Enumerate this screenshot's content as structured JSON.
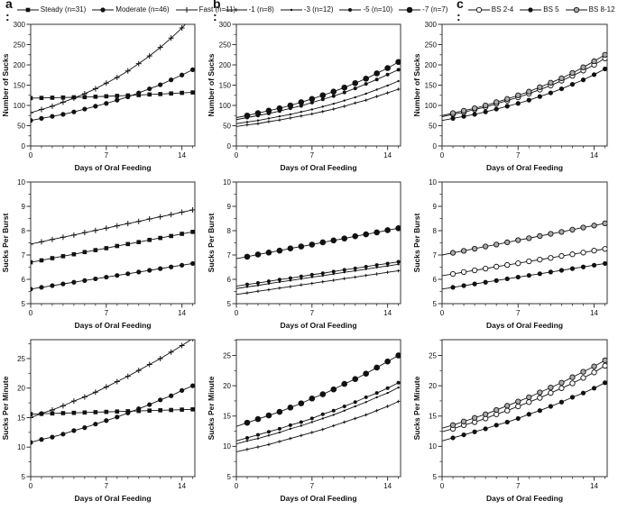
{
  "colors": {
    "line": "#111111",
    "frame": "#333333",
    "text": "#111111",
    "gray_fill": "#aaaaaa",
    "background": "#ffffff"
  },
  "legends": [
    {
      "label": "a :",
      "items": [
        {
          "marker": "filled-square",
          "text": "Steady (n=31)"
        },
        {
          "marker": "filled-circle",
          "text": "Moderate (n=46)"
        },
        {
          "marker": "plus",
          "text": "Fast (n=11)"
        }
      ]
    },
    {
      "label": "b :",
      "items": [
        {
          "marker": "plus-small",
          "text": "-1 (n=8)"
        },
        {
          "marker": "dot-small",
          "text": "-3 (n=12)"
        },
        {
          "marker": "dot-medium",
          "text": "-5 (n=10)"
        },
        {
          "marker": "dot-large",
          "text": "-7 (n=7)"
        }
      ]
    },
    {
      "label": "c :",
      "items": [
        {
          "marker": "open-circle",
          "text": "BS 2-4"
        },
        {
          "marker": "filled-circle",
          "text": "BS 5"
        },
        {
          "marker": "gray-circle",
          "text": "BS 8-12"
        }
      ]
    }
  ],
  "x_days": [
    0,
    1,
    2,
    3,
    4,
    5,
    6,
    7,
    8,
    9,
    10,
    11,
    12,
    13,
    14,
    15
  ],
  "chart_data": [
    {
      "id": "a1",
      "type": "line",
      "column": "a",
      "row": 1,
      "xlabel": "Days of Oral Feeding",
      "ylabel": "Number of Sucks",
      "xlim": [
        0,
        15.2
      ],
      "ylim": [
        0,
        300
      ],
      "xticks": [
        0,
        7,
        14
      ],
      "yticks": [
        0,
        50,
        100,
        150,
        200,
        250,
        300
      ],
      "markers_start_day": 0,
      "series": [
        {
          "name": "Steady (n=31)",
          "marker": "filled-square",
          "values": [
            118,
            118.5,
            119,
            119.5,
            120,
            120.5,
            121.5,
            122.5,
            123.5,
            124.5,
            125.5,
            127,
            128,
            129.5,
            131,
            132
          ]
        },
        {
          "name": "Moderate (n=46)",
          "marker": "filled-circle",
          "values": [
            63,
            68,
            73,
            78,
            84,
            91,
            98,
            105,
            113,
            121,
            131,
            141,
            151,
            163,
            175,
            188
          ]
        },
        {
          "name": "Fast (n=11)",
          "marker": "plus",
          "values": [
            82,
            90,
            98,
            108,
            118,
            129,
            141,
            155,
            169,
            185,
            203,
            222,
            243,
            266,
            291,
            319
          ]
        }
      ]
    },
    {
      "id": "b1",
      "type": "line",
      "column": "b",
      "row": 1,
      "xlabel": "Days of Oral Feeding",
      "ylabel": "Number of Sucks",
      "xlim": [
        0,
        15.2
      ],
      "ylim": [
        0,
        300
      ],
      "xticks": [
        0,
        7,
        14
      ],
      "yticks": [
        0,
        50,
        100,
        150,
        200,
        250,
        300
      ],
      "markers_start_day": 1,
      "series": [
        {
          "name": "-1 (n=8)",
          "marker": "plus-small",
          "values": [
            48,
            52,
            55,
            60,
            64,
            69,
            74,
            79,
            85,
            91,
            98,
            106,
            113,
            122,
            131,
            140
          ]
        },
        {
          "name": "-3 (n=12)",
          "marker": "dot-small",
          "values": [
            55,
            59,
            63,
            68,
            73,
            78,
            84,
            90,
            97,
            104,
            112,
            120,
            129,
            139,
            149,
            160
          ]
        },
        {
          "name": "-5 (n=10)",
          "marker": "dot-medium",
          "values": [
            65,
            70,
            75,
            80,
            86,
            93,
            99,
            107,
            115,
            123,
            132,
            142,
            153,
            164,
            176,
            188
          ]
        },
        {
          "name": "-7 (n=7)",
          "marker": "dot-large",
          "values": [
            70,
            75,
            81,
            87,
            93,
            100,
            108,
            116,
            125,
            134,
            144,
            155,
            166,
            179,
            192,
            207
          ]
        }
      ]
    },
    {
      "id": "c1",
      "type": "line",
      "column": "c",
      "row": 1,
      "xlabel": "Days of Oral Feeding",
      "ylabel": "Number of Sucks",
      "xlim": [
        0,
        15.2
      ],
      "ylim": [
        0,
        300
      ],
      "xticks": [
        0,
        7,
        14
      ],
      "yticks": [
        0,
        50,
        100,
        150,
        200,
        250,
        300
      ],
      "markers_start_day": 1,
      "series": [
        {
          "name": "BS 2-4",
          "marker": "open-circle",
          "values": [
            72,
            78,
            83,
            90,
            96,
            104,
            112,
            120,
            129,
            139,
            149,
            161,
            173,
            186,
            200,
            216
          ]
        },
        {
          "name": "BS 5",
          "marker": "filled-circle",
          "values": [
            63,
            68,
            73,
            78,
            84,
            91,
            98,
            105,
            113,
            122,
            131,
            141,
            152,
            163,
            176,
            190
          ]
        },
        {
          "name": "BS 8-12",
          "marker": "gray-circle",
          "values": [
            75,
            81,
            87,
            93,
            100,
            108,
            116,
            125,
            134,
            145,
            156,
            167,
            180,
            194,
            209,
            225
          ]
        }
      ]
    },
    {
      "id": "a2",
      "type": "line",
      "column": "a",
      "row": 2,
      "xlabel": "Days of Oral Feeding",
      "ylabel": "Sucks Per Burst",
      "xlim": [
        0,
        15.2
      ],
      "ylim": [
        5,
        10
      ],
      "xticks": [
        0,
        7,
        14
      ],
      "yticks": [
        5,
        6,
        7,
        8,
        9,
        10
      ],
      "markers_start_day": 0,
      "series": [
        {
          "name": "Steady (n=31)",
          "marker": "filled-square",
          "values": [
            6.7,
            6.78,
            6.87,
            6.95,
            7.03,
            7.12,
            7.2,
            7.28,
            7.37,
            7.45,
            7.53,
            7.62,
            7.7,
            7.78,
            7.87,
            7.95
          ]
        },
        {
          "name": "Moderate (n=46)",
          "marker": "filled-circle",
          "values": [
            5.6,
            5.67,
            5.74,
            5.81,
            5.88,
            5.95,
            6.02,
            6.09,
            6.16,
            6.23,
            6.3,
            6.37,
            6.44,
            6.51,
            6.58,
            6.65
          ]
        },
        {
          "name": "Fast (n=11)",
          "marker": "plus",
          "values": [
            7.45,
            7.54,
            7.64,
            7.73,
            7.82,
            7.92,
            8.01,
            8.1,
            8.2,
            8.29,
            8.38,
            8.48,
            8.57,
            8.66,
            8.76,
            8.85
          ]
        }
      ]
    },
    {
      "id": "b2",
      "type": "line",
      "column": "b",
      "row": 2,
      "xlabel": "Days of Oral Feeding",
      "ylabel": "Sucks Per Burst",
      "xlim": [
        0,
        15.2
      ],
      "ylim": [
        5,
        10
      ],
      "xticks": [
        0,
        7,
        14
      ],
      "yticks": [
        5,
        6,
        7,
        8,
        9,
        10
      ],
      "markers_start_day": 1,
      "series": [
        {
          "name": "-1 (n=8)",
          "marker": "plus-small",
          "values": [
            5.38,
            5.44,
            5.51,
            5.57,
            5.64,
            5.7,
            5.77,
            5.83,
            5.9,
            5.96,
            6.03,
            6.09,
            6.16,
            6.22,
            6.29,
            6.35
          ]
        },
        {
          "name": "-3 (n=12)",
          "marker": "dot-small",
          "values": [
            5.62,
            5.69,
            5.75,
            5.82,
            5.89,
            5.95,
            6.02,
            6.09,
            6.15,
            6.22,
            6.29,
            6.35,
            6.42,
            6.49,
            6.55,
            6.62
          ]
        },
        {
          "name": "-5 (n=10)",
          "marker": "dot-medium",
          "values": [
            5.72,
            5.79,
            5.85,
            5.92,
            5.99,
            6.05,
            6.12,
            6.19,
            6.25,
            6.32,
            6.39,
            6.45,
            6.52,
            6.59,
            6.65,
            6.72
          ]
        },
        {
          "name": "-7 (n=7)",
          "marker": "dot-large",
          "values": [
            6.85,
            6.93,
            7.02,
            7.1,
            7.18,
            7.27,
            7.35,
            7.43,
            7.52,
            7.6,
            7.68,
            7.77,
            7.85,
            7.93,
            8.02,
            8.1
          ]
        }
      ]
    },
    {
      "id": "c2",
      "type": "line",
      "column": "c",
      "row": 2,
      "xlabel": "Days of Oral Feeding",
      "ylabel": "Sucks Per Burst",
      "xlim": [
        0,
        15.2
      ],
      "ylim": [
        5,
        10
      ],
      "xticks": [
        0,
        7,
        14
      ],
      "yticks": [
        5,
        6,
        7,
        8,
        9,
        10
      ],
      "markers_start_day": 1,
      "series": [
        {
          "name": "BS 2-4",
          "marker": "open-circle",
          "values": [
            6.15,
            6.22,
            6.3,
            6.37,
            6.44,
            6.52,
            6.59,
            6.66,
            6.74,
            6.81,
            6.88,
            6.96,
            7.03,
            7.1,
            7.18,
            7.25
          ]
        },
        {
          "name": "BS 5",
          "marker": "filled-circle",
          "values": [
            5.6,
            5.67,
            5.74,
            5.81,
            5.88,
            5.95,
            6.02,
            6.09,
            6.16,
            6.23,
            6.3,
            6.37,
            6.44,
            6.51,
            6.58,
            6.65
          ]
        },
        {
          "name": "BS 8-12",
          "marker": "gray-circle",
          "values": [
            7.0,
            7.09,
            7.17,
            7.26,
            7.35,
            7.43,
            7.52,
            7.61,
            7.69,
            7.78,
            7.87,
            7.95,
            8.04,
            8.13,
            8.21,
            8.3
          ]
        }
      ]
    },
    {
      "id": "a3",
      "type": "line",
      "column": "a",
      "row": 3,
      "xlabel": "Days of Oral Feeding",
      "ylabel": "Sucks Per Minute",
      "xlim": [
        0,
        15.2
      ],
      "ylim": [
        5,
        28.2
      ],
      "xticks": [
        0,
        7,
        14
      ],
      "yticks": [
        5,
        10,
        15,
        20,
        25
      ],
      "markers_start_day": 0,
      "series": [
        {
          "name": "Steady (n=31)",
          "marker": "filled-square",
          "values": [
            15.6,
            15.65,
            15.71,
            15.76,
            15.81,
            15.87,
            15.92,
            15.97,
            16.03,
            16.08,
            16.13,
            16.19,
            16.24,
            16.29,
            16.35,
            16.4
          ]
        },
        {
          "name": "Moderate (n=46)",
          "marker": "filled-circle",
          "values": [
            10.8,
            11.3,
            11.7,
            12.2,
            12.8,
            13.3,
            13.9,
            14.5,
            15.1,
            15.8,
            16.5,
            17.2,
            18.0,
            18.7,
            19.6,
            20.4
          ]
        },
        {
          "name": "Fast (n=11)",
          "marker": "plus",
          "values": [
            15.0,
            15.7,
            16.3,
            17.0,
            17.8,
            18.5,
            19.3,
            20.2,
            21.1,
            22.0,
            23.0,
            24.0,
            25.0,
            26.1,
            27.2,
            28.4
          ]
        }
      ]
    },
    {
      "id": "b3",
      "type": "line",
      "column": "b",
      "row": 3,
      "xlabel": "Days of Oral Feeding",
      "ylabel": "Sucks Per Minute",
      "xlim": [
        0,
        15.2
      ],
      "ylim": [
        5,
        27.6
      ],
      "xticks": [
        0,
        7,
        14
      ],
      "yticks": [
        5,
        10,
        15,
        20,
        25
      ],
      "markers_start_day": 1,
      "series": [
        {
          "name": "-1 (n=8)",
          "marker": "plus-small",
          "values": [
            9.1,
            9.5,
            9.9,
            10.3,
            10.8,
            11.3,
            11.8,
            12.3,
            12.8,
            13.4,
            14.0,
            14.6,
            15.2,
            15.9,
            16.6,
            17.4
          ]
        },
        {
          "name": "-3 (n=12)",
          "marker": "dot-small",
          "values": [
            10.4,
            10.9,
            11.3,
            11.8,
            12.3,
            12.9,
            13.4,
            14.0,
            14.6,
            15.2,
            15.9,
            16.6,
            17.3,
            18.1,
            18.8,
            19.7
          ]
        },
        {
          "name": "-5 (n=10)",
          "marker": "dot-medium",
          "values": [
            10.9,
            11.4,
            11.9,
            12.4,
            12.9,
            13.5,
            14.0,
            14.6,
            15.3,
            15.9,
            16.6,
            17.3,
            18.1,
            18.8,
            19.6,
            20.5
          ]
        },
        {
          "name": "-7 (n=7)",
          "marker": "dot-large",
          "values": [
            13.3,
            13.9,
            14.5,
            15.1,
            15.7,
            16.4,
            17.1,
            17.9,
            18.6,
            19.4,
            20.3,
            21.1,
            22.0,
            23.0,
            24.0,
            25.0
          ]
        }
      ]
    },
    {
      "id": "c3",
      "type": "line",
      "column": "c",
      "row": 3,
      "xlabel": "Days of Oral Feeding",
      "ylabel": "Sucks Per Minute",
      "xlim": [
        0,
        15.2
      ],
      "ylim": [
        5,
        27.6
      ],
      "xticks": [
        0,
        7,
        14
      ],
      "yticks": [
        5,
        10,
        15,
        20,
        25
      ],
      "markers_start_day": 1,
      "series": [
        {
          "name": "BS 2-4",
          "marker": "open-circle",
          "values": [
            12.4,
            12.9,
            13.5,
            14.0,
            14.6,
            15.3,
            15.9,
            16.6,
            17.3,
            18.0,
            18.8,
            19.6,
            20.4,
            21.3,
            22.2,
            23.3
          ]
        },
        {
          "name": "BS 5",
          "marker": "filled-circle",
          "values": [
            10.9,
            11.4,
            11.9,
            12.4,
            12.9,
            13.5,
            14.0,
            14.6,
            15.3,
            15.9,
            16.6,
            17.3,
            18.1,
            18.8,
            19.6,
            20.5
          ]
        },
        {
          "name": "BS 8-12",
          "marker": "gray-circle",
          "values": [
            13.0,
            13.5,
            14.1,
            14.7,
            15.3,
            16.0,
            16.7,
            17.4,
            18.1,
            18.9,
            19.7,
            20.5,
            21.4,
            22.3,
            23.2,
            24.2
          ]
        }
      ]
    }
  ]
}
